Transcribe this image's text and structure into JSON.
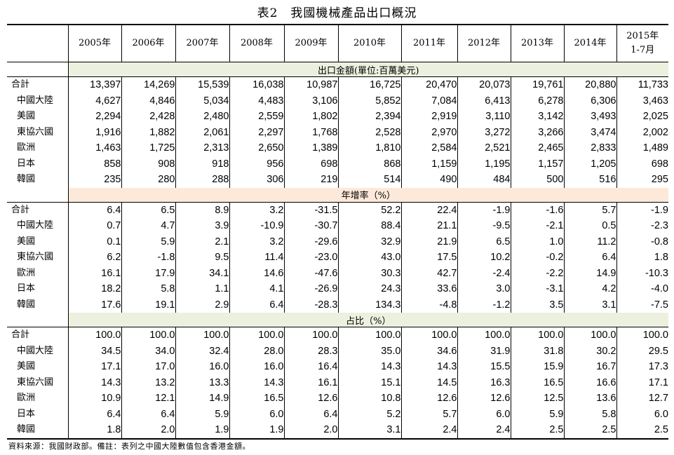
{
  "title": "表2　我國機械產品出口概況",
  "years": [
    "2005年",
    "2006年",
    "2007年",
    "2008年",
    "2009年",
    "2010年",
    "2011年",
    "2012年",
    "2013年",
    "2014年"
  ],
  "last_year_line1": "2015年",
  "last_year_line2": "1-7月",
  "sections": [
    {
      "label": "出口金額(單位:百萬美元)",
      "rows": [
        {
          "name": "合計",
          "values": [
            "13,397",
            "14,269",
            "15,539",
            "16,038",
            "10,987",
            "16,725",
            "20,470",
            "20,073",
            "19,761",
            "20,880",
            "11,733"
          ]
        },
        {
          "name": "中國大陸",
          "values": [
            "4,627",
            "4,846",
            "5,034",
            "4,483",
            "3,106",
            "5,852",
            "7,084",
            "6,413",
            "6,278",
            "6,306",
            "3,463"
          ]
        },
        {
          "name": "美國",
          "values": [
            "2,294",
            "2,428",
            "2,480",
            "2,559",
            "1,802",
            "2,394",
            "2,919",
            "3,110",
            "3,142",
            "3,493",
            "2,025"
          ]
        },
        {
          "name": "東協六國",
          "values": [
            "1,916",
            "1,882",
            "2,061",
            "2,297",
            "1,768",
            "2,528",
            "2,970",
            "3,272",
            "3,266",
            "3,474",
            "2,002"
          ]
        },
        {
          "name": "歐洲",
          "values": [
            "1,463",
            "1,725",
            "2,313",
            "2,650",
            "1,389",
            "1,810",
            "2,584",
            "2,521",
            "2,465",
            "2,833",
            "1,489"
          ]
        },
        {
          "name": "日本",
          "values": [
            "858",
            "908",
            "918",
            "956",
            "698",
            "868",
            "1,159",
            "1,195",
            "1,157",
            "1,205",
            "698"
          ]
        },
        {
          "name": "韓國",
          "values": [
            "235",
            "280",
            "288",
            "306",
            "219",
            "514",
            "490",
            "484",
            "500",
            "516",
            "295"
          ]
        }
      ]
    },
    {
      "label": "年增率（%）",
      "rows": [
        {
          "name": "合計",
          "values": [
            "6.4",
            "6.5",
            "8.9",
            "3.2",
            "-31.5",
            "52.2",
            "22.4",
            "-1.9",
            "-1.6",
            "5.7",
            "-1.9"
          ]
        },
        {
          "name": "中國大陸",
          "values": [
            "0.7",
            "4.7",
            "3.9",
            "-10.9",
            "-30.7",
            "88.4",
            "21.1",
            "-9.5",
            "-2.1",
            "0.5",
            "-2.3"
          ]
        },
        {
          "name": "美國",
          "values": [
            "0.1",
            "5.9",
            "2.1",
            "3.2",
            "-29.6",
            "32.9",
            "21.9",
            "6.5",
            "1.0",
            "11.2",
            "-0.8"
          ]
        },
        {
          "name": "東協六國",
          "values": [
            "6.2",
            "-1.8",
            "9.5",
            "11.4",
            "-23.0",
            "43.0",
            "17.5",
            "10.2",
            "-0.2",
            "6.4",
            "1.8"
          ]
        },
        {
          "name": "歐洲",
          "values": [
            "16.1",
            "17.9",
            "34.1",
            "14.6",
            "-47.6",
            "30.3",
            "42.7",
            "-2.4",
            "-2.2",
            "14.9",
            "-10.3"
          ]
        },
        {
          "name": "日本",
          "values": [
            "18.2",
            "5.8",
            "1.1",
            "4.1",
            "-26.9",
            "24.3",
            "33.6",
            "3.0",
            "-3.1",
            "4.2",
            "-4.0"
          ]
        },
        {
          "name": "韓國",
          "values": [
            "17.6",
            "19.1",
            "2.9",
            "6.4",
            "-28.3",
            "134.3",
            "-4.8",
            "-1.2",
            "3.5",
            "3.1",
            "-7.5"
          ]
        }
      ]
    },
    {
      "label": "占比（%）",
      "rows": [
        {
          "name": "合計",
          "values": [
            "100.0",
            "100.0",
            "100.0",
            "100.0",
            "100.0",
            "100.0",
            "100.0",
            "100.0",
            "100.0",
            "100.0",
            "100.0"
          ]
        },
        {
          "name": "中國大陸",
          "values": [
            "34.5",
            "34.0",
            "32.4",
            "28.0",
            "28.3",
            "35.0",
            "34.6",
            "31.9",
            "31.8",
            "30.2",
            "29.5"
          ]
        },
        {
          "name": "美國",
          "values": [
            "17.1",
            "17.0",
            "16.0",
            "16.0",
            "16.4",
            "14.3",
            "14.3",
            "15.5",
            "15.9",
            "16.7",
            "17.3"
          ]
        },
        {
          "name": "東協六國",
          "values": [
            "14.3",
            "13.2",
            "13.3",
            "14.3",
            "16.1",
            "15.1",
            "14.5",
            "16.3",
            "16.5",
            "16.6",
            "17.1"
          ]
        },
        {
          "name": "歐洲",
          "values": [
            "10.9",
            "12.1",
            "14.9",
            "16.5",
            "12.6",
            "10.8",
            "12.6",
            "12.6",
            "12.5",
            "13.6",
            "12.7"
          ]
        },
        {
          "name": "日本",
          "values": [
            "6.4",
            "6.4",
            "5.9",
            "6.0",
            "6.4",
            "5.2",
            "5.7",
            "6.0",
            "5.9",
            "5.8",
            "6.0"
          ]
        },
        {
          "name": "韓國",
          "values": [
            "1.8",
            "2.0",
            "1.9",
            "1.9",
            "2.0",
            "3.1",
            "2.4",
            "2.4",
            "2.5",
            "2.5",
            "2.5"
          ]
        }
      ]
    }
  ],
  "footnote": "資料來源：我國財政部。備註：表列之中國大陸數值包含香港金額。"
}
